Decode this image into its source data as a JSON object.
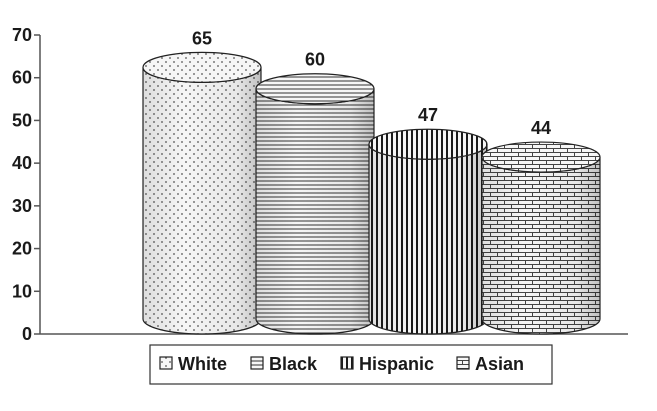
{
  "chart_data": {
    "type": "bar",
    "categories": [
      "White",
      "Black",
      "Hispanic",
      "Asian"
    ],
    "values": [
      65,
      60,
      47,
      44
    ],
    "data_labels": [
      "65",
      "60",
      "47",
      "44"
    ],
    "ylim": [
      0,
      70
    ],
    "yticks": [
      0,
      10,
      20,
      30,
      40,
      50,
      60,
      70
    ],
    "title": "",
    "xlabel": "",
    "ylabel": "",
    "grid": false,
    "legend_position": "bottom",
    "bar_style": "3d-cylinder",
    "patterns": [
      "dots",
      "horizontal-lines",
      "vertical-lines",
      "bricks"
    ]
  }
}
